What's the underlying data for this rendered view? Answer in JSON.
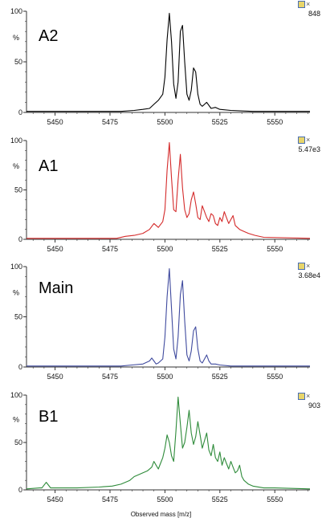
{
  "chart_data": [
    {
      "type": "line",
      "panel_label": "A2",
      "max_intensity": "848",
      "color": "#000000",
      "xlim": [
        5437,
        5566
      ],
      "ylim": [
        0,
        100
      ],
      "yticks": [
        0,
        50,
        100
      ],
      "y_unit_label": "%",
      "xtick_labels": [
        "5450",
        "5475",
        "5500",
        "5525",
        "5550"
      ],
      "series": [
        {
          "x": [
            5437,
            5480,
            5486,
            5490,
            5493,
            5495,
            5497,
            5499,
            5500,
            5501,
            5502,
            5503,
            5504,
            5505,
            5506,
            5507,
            5508,
            5509,
            5510,
            5511,
            5512,
            5513,
            5514,
            5515,
            5516,
            5517,
            5519,
            5521,
            5523,
            5525,
            5530,
            5540,
            5566
          ],
          "values": [
            1,
            1,
            2,
            3,
            4,
            8,
            12,
            18,
            35,
            72,
            98,
            70,
            28,
            14,
            30,
            80,
            86,
            50,
            18,
            12,
            22,
            44,
            40,
            18,
            8,
            6,
            10,
            4,
            5,
            3,
            2,
            1,
            1
          ]
        }
      ]
    },
    {
      "type": "line",
      "panel_label": "A1",
      "max_intensity": "5.47e3",
      "color": "#d42a2a",
      "xlim": [
        5437,
        5566
      ],
      "ylim": [
        0,
        100
      ],
      "yticks": [
        0,
        50,
        100
      ],
      "y_unit_label": "%",
      "xtick_labels": [
        "5450",
        "5475",
        "5500",
        "5525",
        "5550"
      ],
      "series": [
        {
          "x": [
            5437,
            5478,
            5482,
            5486,
            5490,
            5493,
            5495,
            5497,
            5499,
            5500,
            5501,
            5502,
            5503,
            5504,
            5505,
            5506,
            5507,
            5508,
            5509,
            5510,
            5511,
            5512,
            5513,
            5514,
            5515,
            5516,
            5517,
            5518,
            5519,
            5520,
            5521,
            5522,
            5523,
            5524,
            5525,
            5526,
            5527,
            5528,
            5529,
            5530,
            5531,
            5532,
            5534,
            5536,
            5538,
            5541,
            5545,
            5566
          ],
          "values": [
            1,
            1,
            3,
            4,
            6,
            10,
            16,
            12,
            18,
            30,
            70,
            98,
            62,
            30,
            28,
            60,
            86,
            52,
            30,
            22,
            26,
            40,
            48,
            36,
            22,
            20,
            34,
            28,
            22,
            18,
            26,
            24,
            16,
            14,
            22,
            18,
            28,
            22,
            16,
            20,
            24,
            14,
            10,
            8,
            6,
            4,
            2,
            1
          ]
        }
      ]
    },
    {
      "type": "line",
      "panel_label": "Main",
      "max_intensity": "3.68e4",
      "color": "#3f4a9e",
      "xlim": [
        5437,
        5566
      ],
      "ylim": [
        0,
        100
      ],
      "yticks": [
        0,
        50,
        100
      ],
      "y_unit_label": "%",
      "xtick_labels": [
        "5450",
        "5475",
        "5500",
        "5525",
        "5550"
      ],
      "series": [
        {
          "x": [
            5437,
            5480,
            5485,
            5490,
            5493,
            5494,
            5495,
            5496,
            5497,
            5499,
            5500,
            5501,
            5502,
            5503,
            5504,
            5505,
            5506,
            5507,
            5508,
            5509,
            5510,
            5511,
            5512,
            5513,
            5514,
            5515,
            5516,
            5517,
            5518,
            5519,
            5520,
            5521,
            5523,
            5525,
            5530,
            5540,
            5566
          ],
          "values": [
            1,
            1,
            2,
            3,
            6,
            9,
            6,
            3,
            4,
            8,
            30,
            70,
            98,
            58,
            18,
            8,
            30,
            72,
            86,
            46,
            12,
            6,
            16,
            36,
            40,
            18,
            6,
            4,
            8,
            12,
            6,
            3,
            3,
            2,
            1,
            1,
            1
          ]
        }
      ]
    },
    {
      "type": "line",
      "panel_label": "B1",
      "max_intensity": "903",
      "color": "#2e8b3a",
      "xlim": [
        5437,
        5566
      ],
      "ylim": [
        0,
        100
      ],
      "yticks": [
        0,
        50,
        100
      ],
      "y_unit_label": "%",
      "xtick_labels": [
        "5450",
        "5475",
        "5500",
        "5525",
        "5550"
      ],
      "series": [
        {
          "x": [
            5437,
            5443,
            5444,
            5446,
            5448,
            5460,
            5470,
            5476,
            5480,
            5484,
            5486,
            5488,
            5490,
            5492,
            5494,
            5495,
            5496,
            5497,
            5498,
            5499,
            5500,
            5501,
            5502,
            5503,
            5504,
            5505,
            5506,
            5507,
            5508,
            5509,
            5510,
            5511,
            5512,
            5513,
            5514,
            5515,
            5516,
            5517,
            5518,
            5519,
            5520,
            5521,
            5522,
            5523,
            5524,
            5525,
            5526,
            5527,
            5528,
            5529,
            5530,
            5531,
            5532,
            5533,
            5534,
            5535,
            5536,
            5538,
            5540,
            5545,
            5550,
            5566
          ],
          "values": [
            1,
            2,
            2,
            8,
            2,
            2,
            3,
            4,
            6,
            10,
            14,
            16,
            18,
            20,
            24,
            30,
            26,
            22,
            28,
            34,
            44,
            58,
            50,
            36,
            30,
            62,
            98,
            70,
            44,
            50,
            66,
            84,
            60,
            48,
            56,
            72,
            58,
            44,
            52,
            60,
            42,
            36,
            48,
            34,
            30,
            40,
            26,
            34,
            28,
            22,
            30,
            24,
            18,
            20,
            26,
            14,
            10,
            6,
            4,
            2,
            2,
            1
          ]
        }
      ]
    }
  ],
  "xlabel": "Observed mass [m/z]"
}
